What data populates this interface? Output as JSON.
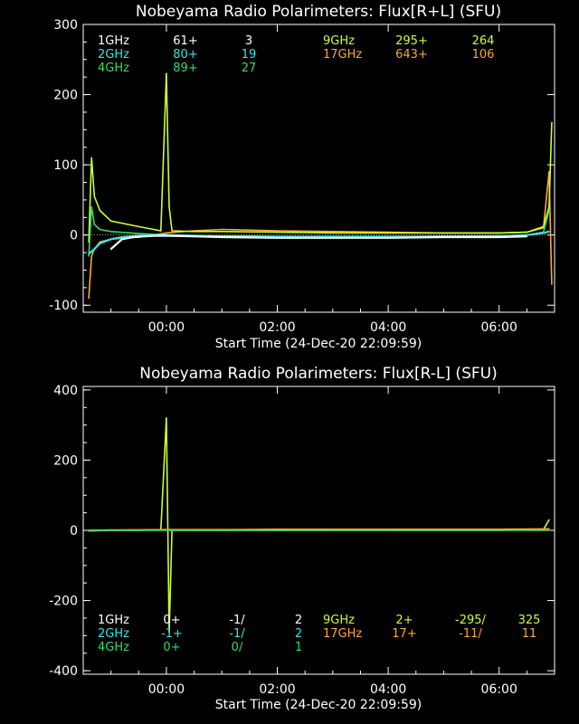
{
  "colors": {
    "bg": "#000000",
    "axis": "#ffffff",
    "f1": "#ffffff",
    "f2": "#33e6e6",
    "f4": "#33dd66",
    "f9": "#ccff33",
    "f17": "#ffa733"
  },
  "chart_data": [
    {
      "type": "line",
      "title": "Nobeyama Radio Polarimeters: Flux[R+L] (SFU)",
      "xlabel": "Start Time (24-Dec-20 22:09:59)",
      "ylabel": "",
      "x_unit": "hours after 00:00 UTC",
      "xlim": [
        -1.5,
        7.0
      ],
      "ylim": [
        -110,
        300
      ],
      "yticks": [
        -100,
        0,
        100,
        200,
        300
      ],
      "xticks": [
        {
          "x": 0,
          "label": "00:00"
        },
        {
          "x": 2,
          "label": "02:00"
        },
        {
          "x": 4,
          "label": "04:00"
        },
        {
          "x": 6,
          "label": "06:00"
        }
      ],
      "legend": [
        {
          "freq": "1GHz",
          "a": "61+",
          "b": "3",
          "color_key": "f1"
        },
        {
          "freq": "2GHz",
          "a": "80+",
          "b": "19",
          "color_key": "f2"
        },
        {
          "freq": "4GHz",
          "a": "89+",
          "b": "27",
          "color_key": "f4"
        },
        {
          "freq": "9GHz",
          "a": "295+",
          "b": "264",
          "color_key": "f9"
        },
        {
          "freq": "17GHz",
          "a": "643+",
          "b": "106",
          "color_key": "f17"
        }
      ],
      "series": [
        {
          "color_key": "f17",
          "x": [
            -1.4,
            -1.35,
            -1.3,
            -1.2,
            -1.0,
            -0.5,
            0,
            0.5,
            1,
            2,
            3,
            4,
            5,
            6,
            6.5,
            6.8,
            6.9,
            6.95
          ],
          "y": [
            -90,
            -30,
            -20,
            -10,
            -6,
            -3,
            3,
            6,
            8,
            6,
            5,
            4,
            3,
            3,
            4,
            10,
            90,
            -70
          ]
        },
        {
          "color_key": "f9",
          "x": [
            -1.4,
            -1.35,
            -1.3,
            -1.2,
            -1.0,
            -0.5,
            -0.1,
            0,
            0.05,
            0.1,
            0.5,
            1,
            2,
            3,
            4,
            4.5,
            5,
            6,
            6.5,
            6.8,
            6.9,
            6.95
          ],
          "y": [
            -10,
            110,
            55,
            35,
            20,
            12,
            6,
            230,
            40,
            6,
            5,
            5,
            4,
            3,
            3,
            3,
            3,
            3,
            4,
            12,
            40,
            160
          ]
        },
        {
          "color_key": "f4",
          "x": [
            -1.4,
            -1.35,
            -1.3,
            -1.2,
            -1.0,
            -0.5,
            0,
            0.5,
            1,
            2,
            3,
            4,
            5,
            6,
            6.5,
            6.8,
            6.9
          ],
          "y": [
            -30,
            40,
            15,
            8,
            5,
            2,
            0,
            -1,
            -1,
            -2,
            -2,
            -2,
            -2,
            -1,
            0,
            4,
            35
          ]
        },
        {
          "color_key": "f2",
          "x": [
            -1.4,
            -1.3,
            -1.2,
            -1.0,
            -0.8,
            -0.5,
            0,
            0.5,
            1,
            2,
            3,
            4,
            5,
            6,
            6.5,
            6.8,
            6.9
          ],
          "y": [
            -27,
            -20,
            -12,
            -6,
            -3,
            -1,
            0,
            -1,
            -2,
            -3,
            -3,
            -3,
            -2,
            -2,
            0,
            3,
            5
          ]
        },
        {
          "color_key": "f1",
          "x": [
            -1.0,
            -0.8,
            -0.6,
            -0.4,
            -0.2,
            0,
            0.5,
            1,
            2,
            3,
            4,
            5,
            6,
            6.5
          ],
          "y": [
            -20,
            -6,
            -3,
            -2,
            -1,
            -1,
            -2,
            -3,
            -4,
            -4,
            -4,
            -3,
            -3,
            -2
          ]
        }
      ]
    },
    {
      "type": "line",
      "title": "Nobeyama Radio Polarimeters: Flux[R-L] (SFU)",
      "xlabel": "Start Time (24-Dec-20 22:09:59)",
      "ylabel": "",
      "x_unit": "hours after 00:00 UTC",
      "xlim": [
        -1.5,
        7.0
      ],
      "ylim": [
        -410,
        410
      ],
      "yticks": [
        -400,
        -200,
        0,
        200,
        400
      ],
      "xticks": [
        {
          "x": 0,
          "label": "00:00"
        },
        {
          "x": 2,
          "label": "02:00"
        },
        {
          "x": 4,
          "label": "04:00"
        },
        {
          "x": 6,
          "label": "06:00"
        }
      ],
      "legend": [
        {
          "freq": "1GHz",
          "a": "0+",
          "b": "-1/",
          "c": "2",
          "color_key": "f1"
        },
        {
          "freq": "2GHz",
          "a": "-1+",
          "b": "-1/",
          "c": "2",
          "color_key": "f2"
        },
        {
          "freq": "4GHz",
          "a": "0+",
          "b": "0/",
          "c": "1",
          "color_key": "f4"
        },
        {
          "freq": "9GHz",
          "a": "2+",
          "b": "-295/",
          "c": "325",
          "color_key": "f9"
        },
        {
          "freq": "17GHz",
          "a": "17+",
          "b": "-11/",
          "c": "11",
          "color_key": "f17"
        }
      ],
      "series": [
        {
          "color_key": "f9",
          "x": [
            -1.4,
            -1.0,
            -0.5,
            -0.1,
            0,
            0.05,
            0.1,
            0.5,
            1,
            2,
            3,
            4,
            5,
            6,
            6.8,
            6.9
          ],
          "y": [
            0,
            0,
            0,
            2,
            320,
            -290,
            0,
            0,
            0,
            0,
            0,
            0,
            0,
            0,
            2,
            30
          ]
        },
        {
          "color_key": "f17",
          "x": [
            -1.4,
            -1,
            0,
            1,
            2,
            3,
            4,
            5,
            6,
            6.9
          ],
          "y": [
            0,
            1,
            2,
            2,
            3,
            3,
            3,
            3,
            3,
            4
          ]
        },
        {
          "color_key": "f4",
          "x": [
            -1.4,
            -1,
            0,
            1,
            2,
            3,
            4,
            5,
            6,
            6.9
          ],
          "y": [
            -2,
            0,
            0,
            0,
            0,
            0,
            0,
            0,
            0,
            0
          ]
        }
      ]
    }
  ]
}
